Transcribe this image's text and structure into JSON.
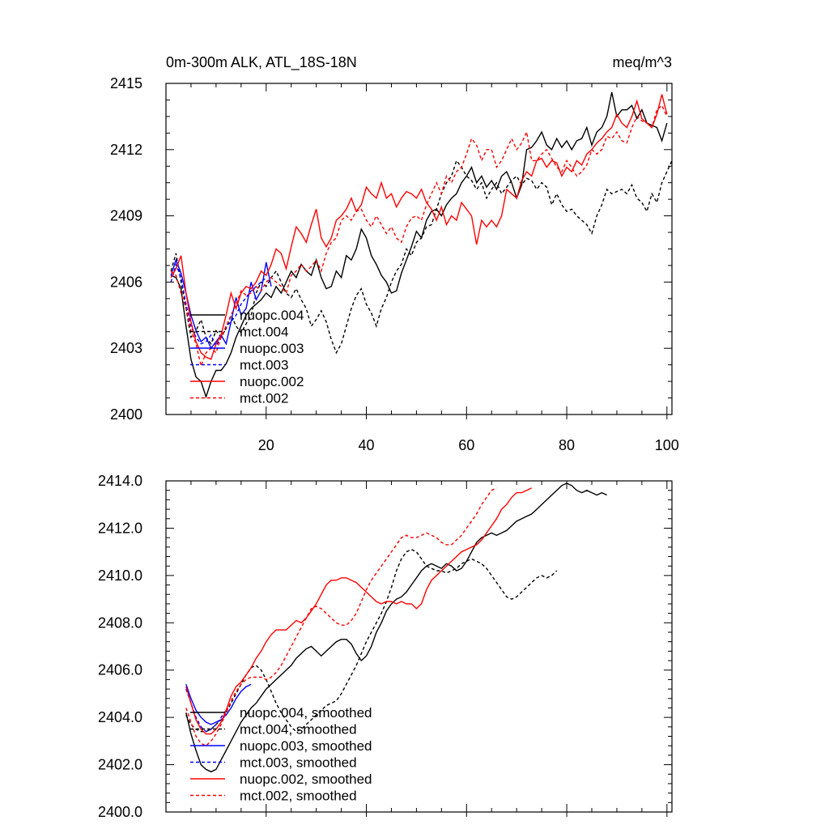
{
  "chart_data": [
    {
      "type": "line",
      "title_left": "0m-300m ALK, ATL_18S-18N",
      "title_right": "meq/m^3",
      "xlabel": "",
      "ylabel": "",
      "xlim": [
        0,
        101
      ],
      "ylim": [
        2400,
        2415
      ],
      "x_ticks": [
        20,
        40,
        60,
        80,
        100
      ],
      "x_tick_labels": [
        "20",
        "40",
        "60",
        "80",
        "100"
      ],
      "y_ticks": [
        2400,
        2403,
        2406,
        2409,
        2412,
        2415
      ],
      "y_tick_labels": [
        "2400",
        "2403",
        "2406",
        "2409",
        "2412",
        "2415"
      ],
      "grid": false,
      "legend_position": "lower-left",
      "series": [
        {
          "name": "nuopc.004",
          "color": "#000000",
          "dash": "solid",
          "x_start": 1,
          "values": [
            2406.3,
            2406.2,
            2405.7,
            2404.0,
            2402.5,
            2401.7,
            2401.5,
            2400.8,
            2401.5,
            2402.0,
            2402.0,
            2402.3,
            2402.8,
            2403.5,
            2404.0,
            2404.5,
            2404.8,
            2405.0,
            2405.2,
            2405.5,
            2405.3,
            2405.8,
            2405.5,
            2406.0,
            2406.5,
            2406.2,
            2406.8,
            2406.5,
            2406.3,
            2407.0,
            2406.2,
            2405.7,
            2405.8,
            2406.5,
            2406.2,
            2407.2,
            2407.0,
            2407.5,
            2408.4,
            2408.0,
            2407.2,
            2406.8,
            2406.3,
            2406.0,
            2405.5,
            2405.6,
            2406.4,
            2407.0,
            2407.6,
            2408.3,
            2408.0,
            2408.8,
            2409.2,
            2409.3,
            2409.0,
            2409.5,
            2409.8,
            2410.0,
            2410.5,
            2410.8,
            2411.2,
            2410.5,
            2410.8,
            2410.3,
            2410.6,
            2410.2,
            2410.8,
            2411.0,
            2410.5,
            2409.8,
            2410.4,
            2412.0,
            2412.1,
            2412.4,
            2412.8,
            2412.2,
            2412.0,
            2412.5,
            2412.1,
            2412.4,
            2412.0,
            2412.4,
            2412.5,
            2413.0,
            2412.2,
            2412.8,
            2413.0,
            2413.5,
            2414.6,
            2413.5,
            2413.8,
            2413.8,
            2414.0,
            2413.4,
            2413.8,
            2413.2,
            2413.1,
            2413.0,
            2412.4,
            2413.2
          ]
        },
        {
          "name": "mct.004",
          "color": "#000000",
          "dash": "dashed",
          "x_start": 1,
          "values": [
            2406.5,
            2407.3,
            2406.0,
            2404.8,
            2403.5,
            2403.8,
            2404.3,
            2403.5,
            2403.2,
            2403.8,
            2403.5,
            2403.9,
            2404.5,
            2404.0,
            2403.7,
            2404.1,
            2404.5,
            2405.5,
            2406.0,
            2405.8,
            2406.2,
            2406.5,
            2406.0,
            2405.5,
            2405.3,
            2405.7,
            2405.2,
            2404.8,
            2404.0,
            2404.3,
            2404.7,
            2404.2,
            2403.4,
            2402.8,
            2403.2,
            2404.0,
            2404.8,
            2405.4,
            2405.7,
            2405.0,
            2404.6,
            2404.0,
            2404.8,
            2405.3,
            2406.0,
            2406.5,
            2406.8,
            2407.5,
            2407.2,
            2407.8,
            2408.0,
            2408.5,
            2408.6,
            2409.3,
            2410.0,
            2410.5,
            2410.8,
            2411.5,
            2411.2,
            2410.8,
            2410.6,
            2410.2,
            2410.5,
            2409.8,
            2410.2,
            2410.5,
            2410.0,
            2410.3,
            2410.6,
            2410.8,
            2410.4,
            2410.7,
            2410.6,
            2410.2,
            2410.5,
            2410.3,
            2409.5,
            2410.0,
            2409.5,
            2409.2,
            2409.3,
            2409.0,
            2408.8,
            2408.6,
            2408.2,
            2409.0,
            2409.5,
            2410.2,
            2410.0,
            2410.1,
            2410.2,
            2410.0,
            2410.4,
            2409.8,
            2409.6,
            2409.2,
            2410.0,
            2409.6,
            2410.5,
            2411.0,
            2411.5
          ]
        },
        {
          "name": "nuopc.003",
          "color": "#0000ff",
          "dash": "solid",
          "x_start": 1,
          "values": [
            2406.3,
            2407.0,
            2406.4,
            2405.5,
            2404.5,
            2403.8,
            2403.3,
            2403.5,
            2403.0,
            2403.3,
            2403.6,
            2403.2,
            2404.2,
            2405.3,
            2404.5,
            2404.8,
            2406.0,
            2405.2,
            2405.6,
            2406.9,
            2405.8
          ]
        },
        {
          "name": "mct.003",
          "color": "#0000ff",
          "dash": "dashed",
          "x_start": 1,
          "values": [
            2406.0,
            2406.8,
            2406.2,
            2405.0,
            2404.0,
            2403.5,
            2403.2,
            2403.3,
            2403.6,
            2403.1,
            2403.5,
            2404.0,
            2404.2,
            2404.5,
            2405.0,
            2405.3,
            2405.6,
            2405.8,
            2406.0,
            2406.2
          ]
        },
        {
          "name": "nuopc.002",
          "color": "#ff0000",
          "dash": "solid",
          "x_start": 1,
          "values": [
            2406.2,
            2406.6,
            2407.2,
            2405.5,
            2404.2,
            2403.3,
            2402.8,
            2402.6,
            2402.5,
            2403.2,
            2403.6,
            2404.5,
            2405.5,
            2404.8,
            2405.5,
            2405.8,
            2405.7,
            2406.0,
            2406.5,
            2406.3,
            2406.8,
            2407.5,
            2407.3,
            2406.6,
            2407.6,
            2408.5,
            2408.2,
            2407.8,
            2408.6,
            2409.3,
            2408.0,
            2407.6,
            2408.0,
            2408.8,
            2409.0,
            2409.3,
            2409.8,
            2409.2,
            2409.5,
            2410.3,
            2410.0,
            2409.8,
            2410.5,
            2409.8,
            2410.0,
            2409.4,
            2409.8,
            2410.1,
            2410.0,
            2409.8,
            2410.2,
            2409.6,
            2409.3,
            2408.8,
            2409.4,
            2408.6,
            2409.0,
            2408.8,
            2409.6,
            2409.3,
            2409.0,
            2407.7,
            2408.8,
            2408.5,
            2408.8,
            2408.5,
            2409.0,
            2410.2,
            2410.0,
            2409.8,
            2410.6,
            2411.0,
            2410.8,
            2411.5,
            2411.6,
            2411.2,
            2411.5,
            2411.4,
            2410.8,
            2411.2,
            2411.0,
            2411.5,
            2411.3,
            2411.8,
            2412.0,
            2412.3,
            2412.5,
            2412.8,
            2413.0,
            2413.6,
            2413.2,
            2413.0,
            2413.5,
            2414.2,
            2413.4,
            2413.2,
            2413.0,
            2413.6,
            2414.5,
            2413.6
          ]
        },
        {
          "name": "mct.002",
          "color": "#ff0000",
          "dash": "dashed",
          "x_start": 1,
          "values": [
            2406.5,
            2406.3,
            2405.5,
            2404.8,
            2403.8,
            2403.2,
            2402.2,
            2402.8,
            2403.0,
            2402.8,
            2403.5,
            2404.0,
            2404.5,
            2405.0,
            2405.6,
            2405.4,
            2405.5,
            2405.8,
            2405.6,
            2406.0,
            2406.2,
            2406.0,
            2405.8,
            2405.5,
            2406.3,
            2406.5,
            2406.8,
            2406.5,
            2406.7,
            2407.0,
            2406.5,
            2407.3,
            2407.8,
            2408.0,
            2408.8,
            2409.0,
            2408.8,
            2409.2,
            2409.3,
            2408.8,
            2408.5,
            2409.0,
            2408.6,
            2408.2,
            2408.5,
            2408.0,
            2407.8,
            2408.5,
            2408.9,
            2409.0,
            2408.8,
            2409.5,
            2410.0,
            2410.5,
            2410.0,
            2410.8,
            2410.5,
            2411.0,
            2411.2,
            2411.8,
            2412.5,
            2412.2,
            2411.5,
            2412.0,
            2412.0,
            2411.2,
            2411.5,
            2412.0,
            2412.5,
            2412.0,
            2412.3,
            2412.8,
            2411.5,
            2411.5,
            2411.8,
            2412.0,
            2411.6,
            2411.2,
            2411.0,
            2411.5,
            2411.2,
            2410.8,
            2411.0,
            2411.3,
            2412.0,
            2411.8,
            2412.0,
            2412.6,
            2412.5,
            2412.8,
            2412.4,
            2412.3,
            2413.0,
            2413.5,
            2413.3,
            2413.2,
            2413.0,
            2413.8,
            2414.0,
            2413.5
          ]
        }
      ]
    },
    {
      "type": "line",
      "title_left": "",
      "title_right": "",
      "xlabel": "",
      "ylabel": "",
      "xlim": [
        0,
        101
      ],
      "ylim": [
        2400.0,
        2414.0
      ],
      "x_ticks": [
        20,
        40,
        60,
        80,
        100
      ],
      "y_ticks": [
        2400,
        2402,
        2404,
        2406,
        2408,
        2410,
        2412,
        2414
      ],
      "y_tick_labels": [
        "2400.0",
        "2402.0",
        "2404.0",
        "2406.0",
        "2408.0",
        "2410.0",
        "2412.0",
        "2414.0"
      ],
      "grid": false,
      "legend_position": "lower-left",
      "series": [
        {
          "name": "nuopc.004, smoothed",
          "color": "#000000",
          "dash": "solid",
          "x_start": 4,
          "values": [
            2404.2,
            2403.3,
            2402.6,
            2402.0,
            2401.8,
            2401.7,
            2401.8,
            2402.2,
            2402.6,
            2403.0,
            2403.4,
            2403.8,
            2404.1,
            2404.4,
            2404.6,
            2404.9,
            2405.2,
            2405.4,
            2405.6,
            2405.8,
            2406.0,
            2406.2,
            2406.5,
            2406.7,
            2406.9,
            2407.0,
            2406.8,
            2406.6,
            2406.8,
            2407.0,
            2407.2,
            2407.3,
            2407.3,
            2407.1,
            2406.7,
            2406.4,
            2406.6,
            2407.0,
            2407.6,
            2408.0,
            2408.5,
            2408.8,
            2409.0,
            2409.1,
            2409.3,
            2409.6,
            2409.9,
            2410.2,
            2410.4,
            2410.5,
            2410.4,
            2410.3,
            2410.5,
            2410.4,
            2410.2,
            2410.3,
            2410.6,
            2411.0,
            2411.4,
            2411.6,
            2411.7,
            2411.8,
            2411.7,
            2411.8,
            2411.9,
            2412.1,
            2412.3,
            2412.4,
            2412.5,
            2412.6,
            2412.8,
            2413.0,
            2413.2,
            2413.4,
            2413.6,
            2413.8,
            2413.9,
            2413.8,
            2413.6,
            2413.5,
            2413.6,
            2413.5,
            2413.4,
            2413.5,
            2413.4
          ]
        },
        {
          "name": "mct.004, smoothed",
          "color": "#000000",
          "dash": "dashed",
          "x_start": 4,
          "values": [
            2404.1,
            2403.7,
            2403.5,
            2403.4,
            2403.4,
            2403.5,
            2403.7,
            2403.9,
            2404.2,
            2404.6,
            2405.0,
            2405.4,
            2405.8,
            2406.1,
            2406.2,
            2406.0,
            2405.6,
            2405.1,
            2404.6,
            2404.2,
            2403.9,
            2403.6,
            2403.4,
            2403.5,
            2403.7,
            2403.9,
            2404.1,
            2404.3,
            2404.5,
            2404.6,
            2404.7,
            2405.0,
            2405.4,
            2405.8,
            2406.2,
            2406.7,
            2407.2,
            2407.6,
            2408.0,
            2408.4,
            2408.9,
            2409.5,
            2410.2,
            2410.7,
            2411.0,
            2411.1,
            2411.0,
            2410.7,
            2410.4,
            2410.3,
            2410.2,
            2410.2,
            2410.1,
            2410.2,
            2410.3,
            2410.5,
            2410.6,
            2410.7,
            2410.6,
            2410.5,
            2410.3,
            2410.0,
            2409.7,
            2409.4,
            2409.1,
            2409.0,
            2409.1,
            2409.3,
            2409.5,
            2409.7,
            2409.9,
            2410.0,
            2409.9,
            2410.0,
            2410.2
          ]
        },
        {
          "name": "nuopc.003, smoothed",
          "color": "#0000ff",
          "dash": "solid",
          "x_start": 4,
          "values": [
            2405.4,
            2404.8,
            2404.3,
            2404.0,
            2403.8,
            2403.7,
            2403.8,
            2403.9,
            2404.1,
            2404.4,
            2404.8,
            2405.1,
            2405.3,
            2405.4
          ]
        },
        {
          "name": "mct.003, smoothed",
          "color": "#0000ff",
          "dash": "dashed",
          "x_start": 4,
          "values": [
            2405.2,
            2404.6,
            2404.0,
            2403.6,
            2403.4,
            2403.5,
            2403.7,
            2404.0,
            2404.3
          ]
        },
        {
          "name": "nuopc.002, smoothed",
          "color": "#ff0000",
          "dash": "solid",
          "x_start": 4,
          "values": [
            2405.3,
            2404.6,
            2403.9,
            2403.5,
            2403.3,
            2403.3,
            2403.5,
            2403.8,
            2404.3,
            2404.9,
            2405.3,
            2405.5,
            2405.8,
            2406.1,
            2406.5,
            2406.8,
            2407.2,
            2407.5,
            2407.7,
            2407.7,
            2407.7,
            2407.9,
            2408.1,
            2408.0,
            2408.2,
            2408.5,
            2408.8,
            2409.2,
            2409.6,
            2409.8,
            2409.8,
            2409.9,
            2409.9,
            2409.8,
            2409.7,
            2409.5,
            2409.3,
            2409.1,
            2408.9,
            2408.8,
            2408.9,
            2408.9,
            2408.8,
            2408.9,
            2408.8,
            2408.8,
            2408.6,
            2408.8,
            2409.4,
            2409.8,
            2410.0,
            2410.2,
            2410.4,
            2410.6,
            2410.8,
            2411.0,
            2411.1,
            2411.2,
            2411.3,
            2411.5,
            2411.8,
            2412.1,
            2412.4,
            2412.8,
            2413.0,
            2413.3,
            2413.5,
            2413.5,
            2413.6,
            2413.7
          ]
        },
        {
          "name": "mct.002, smoothed",
          "color": "#ff0000",
          "dash": "dashed",
          "x_start": 4,
          "values": [
            2404.4,
            2403.8,
            2403.2,
            2402.9,
            2402.8,
            2403.0,
            2403.3,
            2403.7,
            2404.2,
            2404.7,
            2405.1,
            2405.4,
            2405.6,
            2405.7,
            2405.7,
            2405.7,
            2405.6,
            2405.7,
            2405.9,
            2406.2,
            2406.6,
            2407.0,
            2407.4,
            2407.8,
            2408.2,
            2408.6,
            2408.7,
            2408.6,
            2408.4,
            2408.2,
            2408.0,
            2407.9,
            2407.9,
            2408.1,
            2408.4,
            2408.9,
            2409.4,
            2409.8,
            2410.1,
            2410.4,
            2410.7,
            2411.0,
            2411.3,
            2411.6,
            2411.7,
            2411.6,
            2411.6,
            2411.7,
            2411.8,
            2411.7,
            2411.6,
            2411.4,
            2411.3,
            2411.3,
            2411.5,
            2411.7,
            2412.0,
            2412.3,
            2412.6,
            2413.0,
            2413.3,
            2413.6,
            2413.7
          ]
        }
      ]
    }
  ]
}
